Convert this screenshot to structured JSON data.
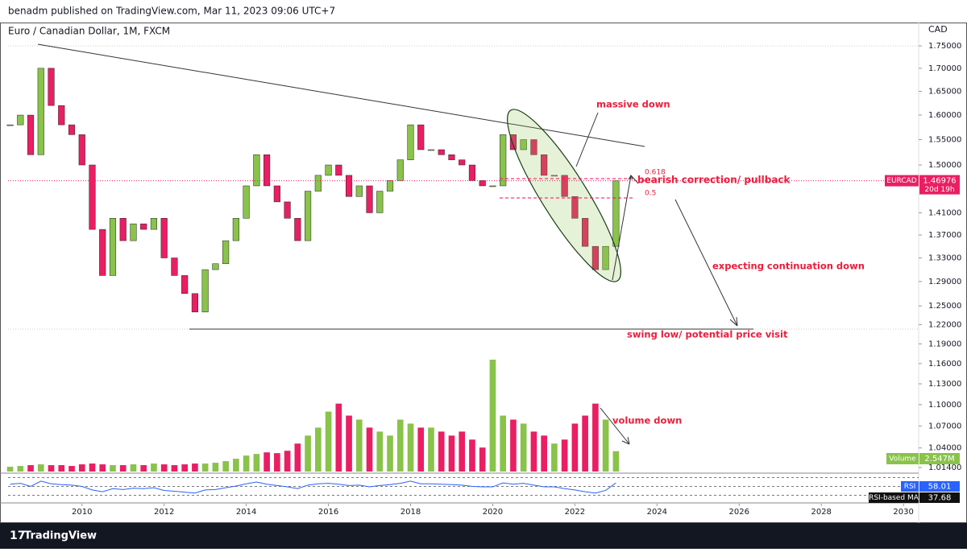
{
  "header": {
    "publisher": "benadm published on TradingView.com, Mar 11, 2023 09:06 UTC+7",
    "brand": "TradingView"
  },
  "chart_data": [
    {
      "type": "candlestick",
      "title": "Euro / Canadian Dollar, 1M, FXCM",
      "symbol": "EURCAD",
      "currency": "CAD",
      "countdown": "20d 19h",
      "up_color": "#89c34a",
      "down_color": "#e91e63",
      "log_scale": true,
      "x": [
        2008.25,
        2008.5,
        2008.75,
        2009,
        2009.25,
        2009.5,
        2009.75,
        2010,
        2010.25,
        2010.5,
        2010.75,
        2011,
        2011.25,
        2011.5,
        2011.75,
        2012,
        2012.25,
        2012.5,
        2012.75,
        2013,
        2013.25,
        2013.5,
        2013.75,
        2014,
        2014.25,
        2014.5,
        2014.75,
        2015,
        2015.25,
        2015.5,
        2015.75,
        2016,
        2016.25,
        2016.5,
        2016.75,
        2017,
        2017.25,
        2017.5,
        2017.75,
        2018,
        2018.25,
        2018.5,
        2018.75,
        2019,
        2019.25,
        2019.5,
        2019.75,
        2020,
        2020.25,
        2020.5,
        2020.75,
        2021,
        2021.25,
        2021.5,
        2021.75,
        2022,
        2022.25,
        2022.5,
        2022.75,
        2023
      ],
      "values": [
        1.58,
        1.6,
        1.52,
        1.7,
        1.62,
        1.58,
        1.56,
        1.5,
        1.38,
        1.3,
        1.4,
        1.36,
        1.39,
        1.38,
        1.4,
        1.33,
        1.3,
        1.27,
        1.24,
        1.31,
        1.32,
        1.36,
        1.4,
        1.46,
        1.52,
        1.46,
        1.43,
        1.4,
        1.36,
        1.45,
        1.48,
        1.5,
        1.48,
        1.44,
        1.46,
        1.41,
        1.45,
        1.47,
        1.51,
        1.58,
        1.53,
        1.53,
        1.52,
        1.51,
        1.5,
        1.47,
        1.46,
        1.46,
        1.56,
        1.53,
        1.55,
        1.52,
        1.48,
        1.48,
        1.44,
        1.4,
        1.35,
        1.31,
        1.35,
        1.46976
      ],
      "xlim": [
        2008.2,
        2030.37
      ],
      "xticks": [
        2010,
        2012,
        2014,
        2016,
        2018,
        2020,
        2022,
        2024,
        2026,
        2028,
        2030
      ],
      "ylim": [
        1.014,
        1.75
      ],
      "yticks": [
        {
          "value": 1.75,
          "label": "1.75000"
        },
        {
          "value": 1.7,
          "label": "1.70000"
        },
        {
          "value": 1.65,
          "label": "1.65000"
        },
        {
          "value": 1.6,
          "label": "1.60000"
        },
        {
          "value": 1.55,
          "label": "1.55000"
        },
        {
          "value": 1.5,
          "label": "1.50000"
        },
        {
          "value": 1.41,
          "label": "1.41000"
        },
        {
          "value": 1.37,
          "label": "1.37000"
        },
        {
          "value": 1.33,
          "label": "1.33000"
        },
        {
          "value": 1.29,
          "label": "1.29000"
        },
        {
          "value": 1.25,
          "label": "1.25000"
        },
        {
          "value": 1.22,
          "label": "1.22000"
        },
        {
          "value": 1.19,
          "label": "1.19000"
        },
        {
          "value": 1.16,
          "label": "1.16000"
        },
        {
          "value": 1.13,
          "label": "1.13000"
        },
        {
          "value": 1.1,
          "label": "1.10000"
        },
        {
          "value": 1.07,
          "label": "1.07000"
        },
        {
          "value": 1.04,
          "label": "1.04000"
        },
        {
          "value": 1.014,
          "label": "1.01400"
        }
      ],
      "annotations": [
        "massive down",
        "bearish correction/ pullback",
        "0.618",
        "0.5",
        "expecting continuation down",
        "swing low/ potential price visit",
        "volume down"
      ]
    },
    {
      "type": "bar",
      "name": "Volume",
      "last_value_label": "2.547M",
      "values": [
        0.6,
        0.7,
        0.8,
        0.9,
        0.8,
        0.8,
        0.7,
        0.9,
        1.0,
        0.9,
        0.8,
        0.8,
        0.9,
        0.8,
        1.0,
        0.9,
        0.8,
        0.9,
        1.0,
        1.0,
        1.1,
        1.3,
        1.6,
        2.0,
        2.2,
        2.4,
        2.3,
        2.6,
        3.5,
        4.5,
        5.5,
        7.5,
        8.5,
        7.0,
        6.5,
        5.5,
        5.0,
        4.5,
        6.5,
        6.0,
        5.5,
        5.5,
        5.0,
        4.5,
        5.0,
        4.0,
        3.0,
        14.0,
        7.0,
        6.5,
        6.0,
        5.0,
        4.5,
        3.5,
        4.0,
        6.0,
        7.0,
        8.5,
        6.5,
        2.547
      ]
    },
    {
      "type": "line",
      "name": "RSI",
      "color": "#2962ff",
      "ma_name": "RSI-based MA",
      "ma_value": 37.68,
      "values": [
        55,
        57,
        50,
        62,
        56,
        54,
        53,
        50,
        42,
        38,
        45,
        43,
        46,
        45,
        47,
        41,
        39,
        37,
        35,
        42,
        43,
        47,
        51,
        56,
        60,
        55,
        52,
        49,
        45,
        53,
        56,
        57,
        55,
        52,
        53,
        49,
        52,
        54,
        57,
        62,
        56,
        56,
        55,
        54,
        53,
        50,
        49,
        49,
        58,
        55,
        57,
        53,
        49,
        49,
        45,
        42,
        38,
        35,
        41,
        58.01
      ]
    }
  ]
}
